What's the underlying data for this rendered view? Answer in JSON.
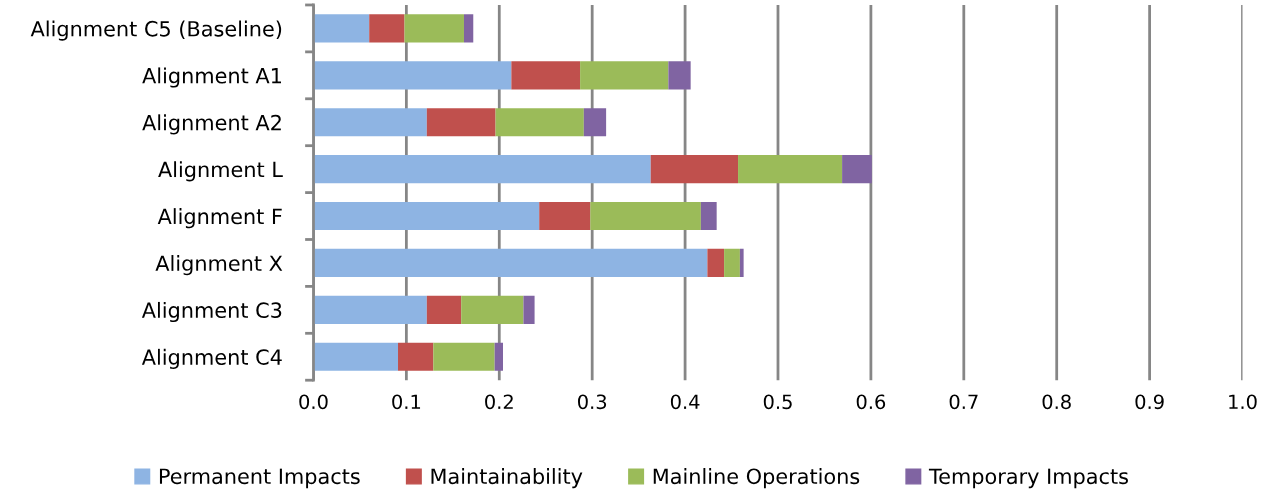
{
  "chart_data": {
    "type": "bar",
    "orientation": "horizontal",
    "stacked": true,
    "categories": [
      "Alignment C5 (Baseline)",
      "Alignment A1",
      "Alignment A2",
      "Alignment L",
      "Alignment F",
      "Alignment X",
      "Alignment C3",
      "Alignment C4"
    ],
    "series": [
      {
        "name": "Permanent Impacts",
        "color": "#8eb4e3",
        "values": [
          0.06,
          0.213,
          0.122,
          0.363,
          0.243,
          0.424,
          0.122,
          0.091
        ]
      },
      {
        "name": "Maintainability",
        "color": "#c0504d",
        "values": [
          0.038,
          0.074,
          0.074,
          0.094,
          0.055,
          0.018,
          0.037,
          0.038
        ]
      },
      {
        "name": "Mainline Operations",
        "color": "#9bbb59",
        "values": [
          0.064,
          0.095,
          0.095,
          0.112,
          0.119,
          0.017,
          0.067,
          0.066
        ]
      },
      {
        "name": "Temporary Impacts",
        "color": "#8064a2",
        "values": [
          0.01,
          0.024,
          0.024,
          0.032,
          0.017,
          0.004,
          0.012,
          0.009
        ]
      }
    ],
    "xlim": [
      0,
      1
    ],
    "xticks": [
      {
        "value": 0,
        "label": "0.0"
      },
      0.1,
      0.2,
      0.3,
      0.4,
      0.5,
      0.6,
      0.7,
      0.8,
      0.9,
      {
        "value": 1,
        "label": "1.0"
      }
    ],
    "grid": "x",
    "legend": "bottom"
  }
}
